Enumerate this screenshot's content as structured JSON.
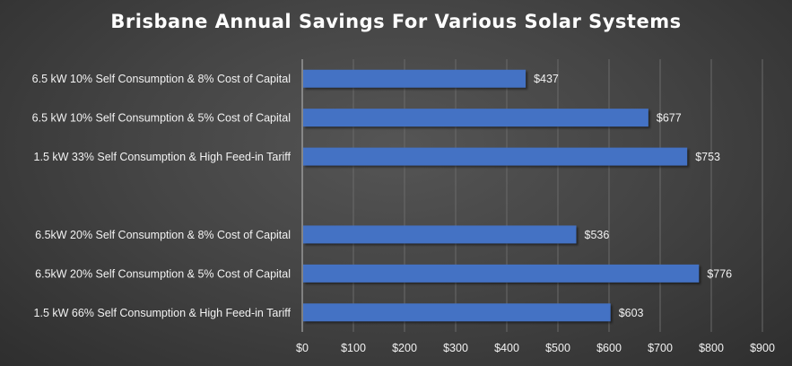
{
  "chart_data": {
    "type": "bar",
    "orientation": "horizontal",
    "title": "Brisbane Annual Savings For Various Solar Systems",
    "xlabel": "",
    "ylabel": "",
    "xlim": [
      0,
      900
    ],
    "grid": true,
    "legend": "none",
    "bar_color": "#4472c4",
    "categories": [
      "6.5 kW 10% Self Consumption & 8% Cost of Capital",
      "6.5 kW 10% Self Consumption & 5% Cost of Capital",
      "1.5 kW 33% Self Consumption & High Feed-in Tariff",
      "",
      "6.5kW 20% Self Consumption & 8% Cost of Capital",
      "6.5kW 20% Self Consumption & 5% Cost of Capital",
      "1.5 kW 66% Self Consumption & High Feed-in Tariff"
    ],
    "values": [
      437,
      677,
      753,
      null,
      536,
      776,
      603
    ],
    "data_labels": [
      "$437",
      "$677",
      "$753",
      "",
      "$536",
      "$776",
      "$603"
    ],
    "x_ticks": [
      0,
      100,
      200,
      300,
      400,
      500,
      600,
      700,
      800,
      900
    ],
    "x_tick_labels": [
      "$0",
      "$100",
      "$200",
      "$300",
      "$400",
      "$500",
      "$600",
      "$700",
      "$800",
      "$900"
    ]
  }
}
